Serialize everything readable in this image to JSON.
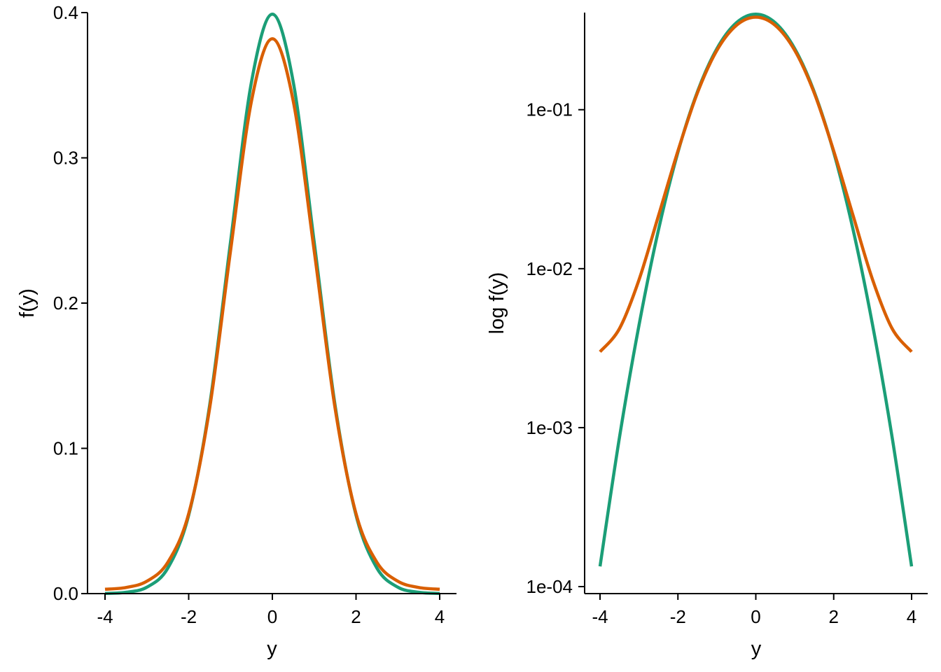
{
  "chart_data": [
    {
      "type": "line",
      "title": "",
      "xlabel": "y",
      "ylabel": "f(y)",
      "xlim": [
        -4,
        4
      ],
      "ylim": [
        0,
        0.4
      ],
      "yscale": "linear",
      "grid": false,
      "legend": "none",
      "xticks": [
        -4,
        -2,
        0,
        2,
        4
      ],
      "xtick_labels": [
        "-4",
        "-2",
        "0",
        "2",
        "4"
      ],
      "yticks": [
        0,
        0.1,
        0.2,
        0.3,
        0.4
      ],
      "ytick_labels": [
        "0.0",
        "0.1",
        "0.2",
        "0.3",
        "0.4"
      ],
      "x": [
        -4,
        -3.5,
        -3,
        -2.5,
        -2,
        -1.5,
        -1,
        -0.5,
        0,
        0.5,
        1,
        1.5,
        2,
        2.5,
        3,
        3.5,
        4
      ],
      "series": [
        {
          "color": "#1b9e77",
          "values": [
            0.0001,
            0.0009,
            0.0044,
            0.0175,
            0.054,
            0.1295,
            0.242,
            0.3521,
            0.3989,
            0.3521,
            0.242,
            0.1295,
            0.054,
            0.0175,
            0.0044,
            0.0009,
            0.0001
          ]
        },
        {
          "color": "#d95f02",
          "values": [
            0.003,
            0.0042,
            0.0085,
            0.0215,
            0.055,
            0.1275,
            0.236,
            0.339,
            0.382,
            0.339,
            0.236,
            0.1275,
            0.055,
            0.0215,
            0.0085,
            0.0042,
            0.003
          ]
        }
      ]
    },
    {
      "type": "line",
      "title": "",
      "xlabel": "y",
      "ylabel": "log f(y)",
      "xlim": [
        -4,
        4
      ],
      "ylim": [
        0.0001,
        0.4
      ],
      "yscale": "log",
      "grid": false,
      "legend": "none",
      "xticks": [
        -4,
        -2,
        0,
        2,
        4
      ],
      "xtick_labels": [
        "-4",
        "-2",
        "0",
        "2",
        "4"
      ],
      "yticks": [
        0.0001,
        0.001,
        0.01,
        0.1
      ],
      "ytick_labels": [
        "1e-04",
        "1e-03",
        "1e-02",
        "1e-01"
      ],
      "x": [
        -4,
        -3.5,
        -3,
        -2.5,
        -2,
        -1.5,
        -1,
        -0.5,
        0,
        0.5,
        1,
        1.5,
        2,
        2.5,
        3,
        3.5,
        4
      ],
      "series": [
        {
          "color": "#1b9e77",
          "values": [
            0.000134,
            0.00087,
            0.0044,
            0.0175,
            0.054,
            0.1295,
            0.242,
            0.3521,
            0.3989,
            0.3521,
            0.242,
            0.1295,
            0.054,
            0.0175,
            0.0044,
            0.00087,
            0.000134
          ]
        },
        {
          "color": "#d95f02",
          "values": [
            0.003,
            0.0042,
            0.0085,
            0.0215,
            0.055,
            0.1275,
            0.236,
            0.339,
            0.382,
            0.339,
            0.236,
            0.1275,
            0.055,
            0.0215,
            0.0085,
            0.0042,
            0.003
          ]
        }
      ]
    }
  ]
}
